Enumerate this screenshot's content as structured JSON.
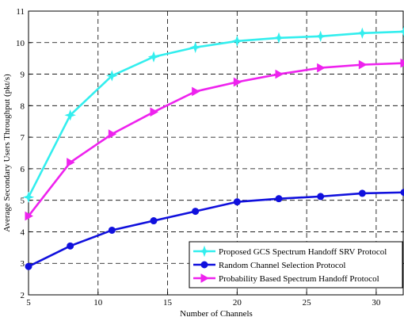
{
  "chart_data": {
    "type": "line",
    "xlabel": "Number of Channels",
    "ylabel": "Average Secondary Users Throughput (pkt/s)",
    "xlim": [
      5,
      32
    ],
    "ylim": [
      2,
      11
    ],
    "xticks": [
      5,
      10,
      15,
      20,
      25,
      30
    ],
    "yticks": [
      2,
      3,
      4,
      5,
      6,
      7,
      8,
      9,
      10,
      11
    ],
    "grid": true,
    "legend_position": "bottom-right",
    "x": [
      5,
      8,
      11,
      14,
      17,
      20,
      23,
      26,
      29,
      32
    ],
    "series": [
      {
        "name": "Proposed GCS Spectrum Handoff SRV Protocol",
        "color": "#33eeee",
        "marker": "star",
        "values": [
          5.1,
          7.7,
          8.95,
          9.55,
          9.85,
          10.05,
          10.15,
          10.2,
          10.3,
          10.35
        ]
      },
      {
        "name": "Random Channel Selection Protocol",
        "color": "#1010dd",
        "marker": "circle",
        "values": [
          2.9,
          3.55,
          4.05,
          4.35,
          4.65,
          4.95,
          5.05,
          5.12,
          5.22,
          5.25
        ]
      },
      {
        "name": "Probability Based Spectrum Handoff Protocol",
        "color": "#ee22ee",
        "marker": "triangle-right",
        "values": [
          4.5,
          6.2,
          7.1,
          7.8,
          8.45,
          8.75,
          9.0,
          9.2,
          9.3,
          9.35
        ]
      }
    ]
  }
}
